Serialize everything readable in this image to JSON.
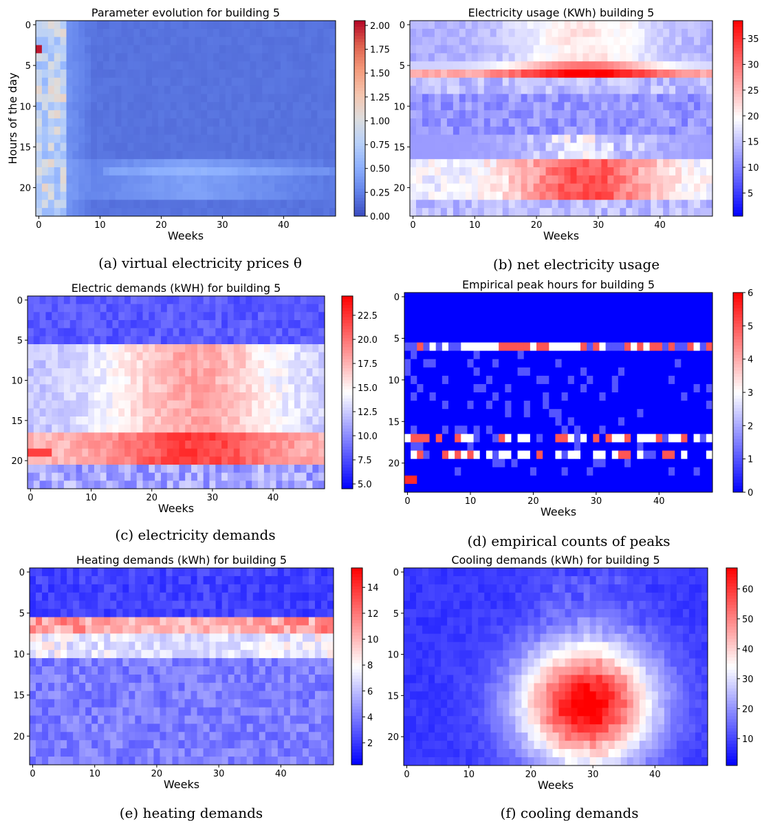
{
  "chart_data": [
    {
      "id": "a",
      "type": "heatmap",
      "title": "Parameter evolution for building 5",
      "xlabel": "Weeks",
      "ylabel": "Hours of the day",
      "caption": "(a) virtual electricity prices θ",
      "x_range": [
        0,
        48
      ],
      "y_range": [
        0,
        23
      ],
      "xticks": [
        0,
        10,
        20,
        30,
        40
      ],
      "yticks": [
        0,
        5,
        10,
        15,
        20
      ],
      "colorbar": {
        "min": 0.0,
        "max": 2.05,
        "ticks": [
          0.0,
          0.25,
          0.5,
          0.75,
          1.0,
          1.25,
          1.5,
          1.75,
          2.0
        ],
        "tick_labels": [
          "0.00",
          "0.25",
          "0.50",
          "0.75",
          "1.00",
          "1.25",
          "1.50",
          "1.75",
          "2.00"
        ],
        "colormap": "coolwarm"
      },
      "pattern": "prices"
    },
    {
      "id": "b",
      "type": "heatmap",
      "title": "Electricity usage (KWh) building 5",
      "xlabel": "Weeks",
      "ylabel": "",
      "caption": "(b) net electricity usage",
      "x_range": [
        0,
        48
      ],
      "y_range": [
        0,
        23
      ],
      "xticks": [
        0,
        10,
        20,
        30,
        40
      ],
      "yticks": [
        0,
        5,
        10,
        15,
        20
      ],
      "colorbar": {
        "min": 0.5,
        "max": 38.5,
        "ticks": [
          5,
          10,
          15,
          20,
          25,
          30,
          35
        ],
        "tick_labels": [
          "5",
          "10",
          "15",
          "20",
          "25",
          "30",
          "35"
        ],
        "colormap": "bwr"
      },
      "pattern": "usage"
    },
    {
      "id": "c",
      "type": "heatmap",
      "title": "Electric demands (kWH) for building 5",
      "xlabel": "Weeks",
      "ylabel": "",
      "caption": "(c) electricity demands",
      "x_range": [
        0,
        48
      ],
      "y_range": [
        0,
        23
      ],
      "xticks": [
        0,
        10,
        20,
        30,
        40
      ],
      "yticks": [
        0,
        5,
        10,
        15,
        20
      ],
      "colorbar": {
        "min": 4.5,
        "max": 24.5,
        "ticks": [
          5.0,
          7.5,
          10.0,
          12.5,
          15.0,
          17.5,
          20.0,
          22.5
        ],
        "tick_labels": [
          "5.0",
          "7.5",
          "10.0",
          "12.5",
          "15.0",
          "17.5",
          "20.0",
          "22.5"
        ],
        "colormap": "bwr"
      },
      "pattern": "demand"
    },
    {
      "id": "d",
      "type": "heatmap",
      "title": "Empirical peak hours for building 5",
      "xlabel": "Weeks",
      "ylabel": "",
      "caption": "(d) empirical counts of peaks",
      "x_range": [
        0,
        48
      ],
      "y_range": [
        0,
        23
      ],
      "xticks": [
        0,
        10,
        20,
        30,
        40
      ],
      "yticks": [
        0,
        5,
        10,
        15,
        20
      ],
      "colorbar": {
        "min": 0,
        "max": 6,
        "ticks": [
          0,
          1,
          2,
          3,
          4,
          5,
          6
        ],
        "tick_labels": [
          "0",
          "1",
          "2",
          "3",
          "4",
          "5",
          "6"
        ],
        "colormap": "bwr"
      },
      "pattern": "peaks"
    },
    {
      "id": "e",
      "type": "heatmap",
      "title": "Heating demands (kWh) for building 5",
      "xlabel": "Weeks",
      "ylabel": "",
      "caption": "(e) heating demands",
      "x_range": [
        0,
        48
      ],
      "y_range": [
        0,
        23
      ],
      "xticks": [
        0,
        10,
        20,
        30,
        40
      ],
      "yticks": [
        0,
        5,
        10,
        15,
        20
      ],
      "colorbar": {
        "min": 0.3,
        "max": 15.5,
        "ticks": [
          2,
          4,
          6,
          8,
          10,
          12,
          14
        ],
        "tick_labels": [
          "2",
          "4",
          "6",
          "8",
          "10",
          "12",
          "14"
        ],
        "colormap": "bwr"
      },
      "pattern": "heating"
    },
    {
      "id": "f",
      "type": "heatmap",
      "title": "Cooling demands (kWh) for building 5",
      "xlabel": "Weeks",
      "ylabel": "",
      "caption": "(f) cooling demands",
      "x_range": [
        0,
        48
      ],
      "y_range": [
        0,
        23
      ],
      "xticks": [
        0,
        10,
        20,
        30,
        40
      ],
      "yticks": [
        0,
        5,
        10,
        15,
        20
      ],
      "colorbar": {
        "min": 1,
        "max": 67,
        "ticks": [
          10,
          20,
          30,
          40,
          50,
          60
        ],
        "tick_labels": [
          "10",
          "20",
          "30",
          "40",
          "50",
          "60"
        ],
        "colormap": "bwr"
      },
      "pattern": "cooling"
    }
  ]
}
